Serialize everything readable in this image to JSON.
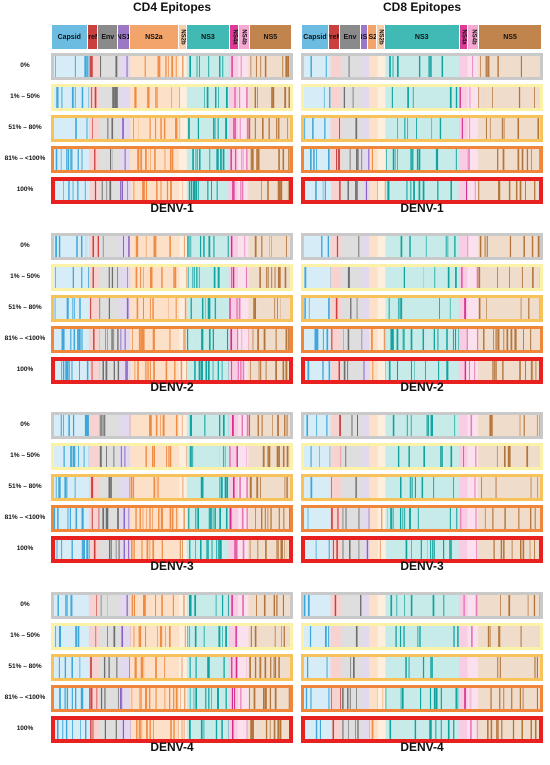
{
  "columns": [
    {
      "title": "CD4 Epitopes"
    },
    {
      "title": "CD8 Epitopes"
    }
  ],
  "genome_regions": [
    {
      "label": "Capsid",
      "color": "#6bbce0",
      "vertical": false
    },
    {
      "label": "PreM",
      "color": "#c9403f",
      "vertical": false
    },
    {
      "label": "Env",
      "color": "#8a8a8a",
      "vertical": false
    },
    {
      "label": "NS1",
      "color": "#9b77c6",
      "vertical": false
    },
    {
      "label": "NS2a",
      "color": "#f3a46a",
      "vertical": false
    },
    {
      "label": "NS2b",
      "color": "#f6cfaa",
      "vertical": true
    },
    {
      "label": "NS3",
      "color": "#41b9b5",
      "vertical": false
    },
    {
      "label": "NS4a",
      "color": "#de3a96",
      "vertical": true
    },
    {
      "label": "NS4b",
      "color": "#f5a9d2",
      "vertical": true
    },
    {
      "label": "NS5",
      "color": "#c1844c",
      "vertical": false
    }
  ],
  "conservation_levels": [
    {
      "label": "0%",
      "border": "#c9c9c9"
    },
    {
      "label": "1% – 50%",
      "border": "#fbf2a8"
    },
    {
      "label": "51% – 80%",
      "border": "#f7c25a"
    },
    {
      "label": "81% – <100%",
      "border": "#f0863a"
    },
    {
      "label": "100%",
      "border": "#e8201f"
    }
  ],
  "serotypes": [
    "DENV-1",
    "DENV-2",
    "DENV-3",
    "DENV-4"
  ]
}
